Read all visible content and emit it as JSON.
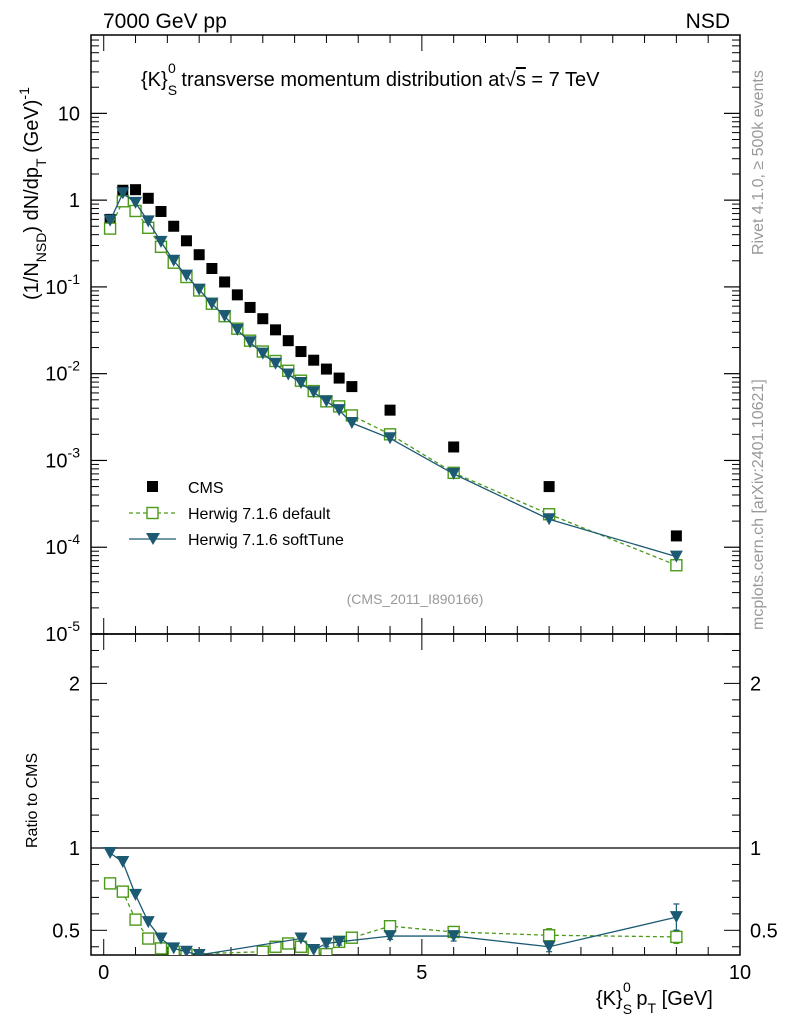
{
  "header": {
    "left": "7000 GeV pp",
    "right": "NSD"
  },
  "side_labels": {
    "top": "Rivet 4.1.0, ≥ 500k events",
    "bottom": "mcplots.cern.ch [arXiv:2401.10621]"
  },
  "colors": {
    "cms": "#000000",
    "default": "#4c9a1a",
    "soft": "#1c5a73",
    "watermark": "#999999"
  },
  "chart_data": [
    {
      "type": "scatter",
      "title": "{K}_S^0 transverse momentum distribution at √s = 7 TeV",
      "title_parts": {
        "prefix": "{K}",
        "sup": "0",
        "sub": "S",
        "middle": " transverse momentum distribution at",
        "sqrt": "√",
        "s": "s",
        "suffix": " = 7 TeV"
      },
      "ylabel_parts": {
        "a": "(1/N",
        "b": "NSD",
        "c": ") dN/dp",
        "d": "T",
        "e": " (GeV)",
        "f": "-1"
      },
      "yscale": "log",
      "ylim": [
        1e-05,
        80
      ],
      "xlim": [
        -0.2,
        10
      ],
      "yticks": [
        {
          "v": 1e-05,
          "base": "10",
          "exp": "-5"
        },
        {
          "v": 0.0001,
          "base": "10",
          "exp": "-4"
        },
        {
          "v": 0.001,
          "base": "10",
          "exp": "-3"
        },
        {
          "v": 0.01,
          "base": "10",
          "exp": "-2"
        },
        {
          "v": 0.1,
          "base": "10",
          "exp": "-1"
        },
        {
          "v": 1,
          "base": "1",
          "exp": ""
        },
        {
          "v": 10,
          "base": "10",
          "exp": ""
        }
      ],
      "watermark": "(CMS_2011_I890166)",
      "legend": {
        "position": "lower-left",
        "entries": [
          "CMS",
          "Herwig 7.1.6 default",
          "Herwig 7.1.6 softTune"
        ]
      },
      "series": [
        {
          "name": "CMS",
          "marker": "filled-square",
          "x": [
            0.1,
            0.3,
            0.5,
            0.7,
            0.9,
            1.1,
            1.3,
            1.5,
            1.7,
            1.9,
            2.1,
            2.3,
            2.5,
            2.7,
            2.9,
            3.1,
            3.3,
            3.5,
            3.7,
            3.9,
            4.5,
            5.5,
            7.0,
            9.0
          ],
          "y": [
            0.6,
            1.3,
            1.32,
            1.05,
            0.74,
            0.5,
            0.34,
            0.235,
            0.163,
            0.114,
            0.081,
            0.058,
            0.043,
            0.032,
            0.024,
            0.018,
            0.0143,
            0.0113,
            0.0089,
            0.0071,
            0.0038,
            0.00143,
            0.0005,
            0.000135
          ]
        },
        {
          "name": "Herwig 7.1.6 default",
          "marker": "open-square",
          "line": "dashed",
          "x": [
            0.1,
            0.3,
            0.5,
            0.7,
            0.9,
            1.1,
            1.3,
            1.5,
            1.7,
            1.9,
            2.1,
            2.3,
            2.5,
            2.7,
            2.9,
            3.1,
            3.3,
            3.5,
            3.7,
            3.9,
            4.5,
            5.5,
            7.0,
            9.0
          ],
          "y": [
            0.47,
            0.97,
            0.75,
            0.48,
            0.29,
            0.19,
            0.13,
            0.091,
            0.064,
            0.046,
            0.033,
            0.024,
            0.018,
            0.014,
            0.0108,
            0.0083,
            0.0063,
            0.0048,
            0.0042,
            0.0033,
            0.002,
            0.00072,
            0.00024,
            6.2e-05
          ]
        },
        {
          "name": "Herwig 7.1.6 softTune",
          "marker": "filled-triangle-down",
          "line": "solid",
          "x": [
            0.1,
            0.3,
            0.5,
            0.7,
            0.9,
            1.1,
            1.3,
            1.5,
            1.7,
            1.9,
            2.1,
            2.3,
            2.5,
            2.7,
            2.9,
            3.1,
            3.3,
            3.5,
            3.7,
            3.9,
            4.5,
            5.5,
            7.0,
            9.0
          ],
          "y": [
            0.58,
            1.2,
            0.93,
            0.57,
            0.33,
            0.2,
            0.135,
            0.093,
            0.064,
            0.046,
            0.032,
            0.023,
            0.017,
            0.013,
            0.0098,
            0.0078,
            0.0061,
            0.0048,
            0.0038,
            0.0027,
            0.0018,
            0.0007,
            0.00021,
            7.8e-05
          ]
        }
      ]
    },
    {
      "type": "line",
      "ylabel": "Ratio to CMS",
      "ylim": [
        0.35,
        2.3
      ],
      "xlim": [
        -0.2,
        10
      ],
      "yticks": [
        0.5,
        1,
        2
      ],
      "xticks": [
        0,
        5,
        10
      ],
      "xlabel_parts": {
        "a": "{K}",
        "sup": "0",
        "sub": "S",
        "b": " p",
        "c": "T",
        "d": " [GeV]"
      },
      "reference": 1.0,
      "series": [
        {
          "name": "Herwig 7.1.6 default",
          "marker": "open-square",
          "line": "dashed",
          "x": [
            0.1,
            0.3,
            0.5,
            0.7,
            0.9,
            1.1,
            1.3,
            2.5,
            2.7,
            2.9,
            3.1,
            3.3,
            3.5,
            3.7,
            3.9,
            4.5,
            5.5,
            7.0,
            9.0
          ],
          "y": [
            0.785,
            0.735,
            0.565,
            0.45,
            0.39,
            0.37,
            0.355,
            0.37,
            0.4,
            0.42,
            0.4,
            0.37,
            0.355,
            0.43,
            0.455,
            0.525,
            0.49,
            0.47,
            0.46
          ],
          "err": [
            0,
            0,
            0,
            0,
            0,
            0,
            0,
            0,
            0,
            0,
            0,
            0,
            0,
            0.02,
            0.02,
            0.02,
            0.025,
            0.04,
            0.04
          ]
        },
        {
          "name": "Herwig 7.1.6 softTune",
          "marker": "filled-triangle-down",
          "line": "solid",
          "x": [
            0.1,
            0.3,
            0.5,
            0.7,
            0.9,
            1.1,
            1.3,
            1.5,
            3.1,
            3.3,
            3.5,
            3.7,
            4.5,
            5.5,
            7.0,
            9.0
          ],
          "y": [
            0.97,
            0.915,
            0.715,
            0.55,
            0.45,
            0.39,
            0.37,
            0.35,
            0.45,
            0.38,
            0.42,
            0.43,
            0.465,
            0.465,
            0.4,
            0.58
          ],
          "err": [
            0,
            0,
            0,
            0,
            0,
            0,
            0,
            0,
            0,
            0,
            0.02,
            0.02,
            0.02,
            0.03,
            0.03,
            0.08
          ]
        }
      ]
    }
  ]
}
